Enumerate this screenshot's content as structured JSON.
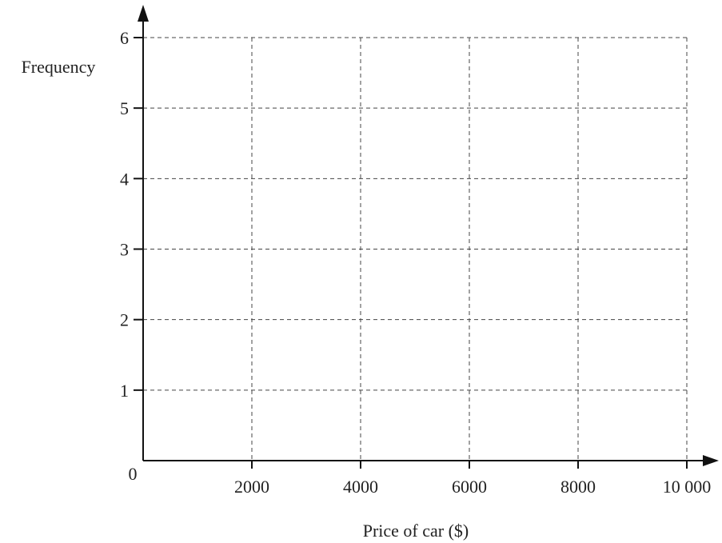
{
  "chart_data": {
    "type": "bar",
    "title": "",
    "xlabel": "Price of car ($)",
    "ylabel": "Frequency",
    "xlim": [
      0,
      10000
    ],
    "ylim": [
      0,
      6
    ],
    "x_ticks": [
      2000,
      4000,
      6000,
      8000,
      10000
    ],
    "x_tick_labels": [
      "2000",
      "4000",
      "6000",
      "8000",
      "10 000"
    ],
    "y_ticks": [
      1,
      2,
      3,
      4,
      5,
      6
    ],
    "y_tick_labels": [
      "1",
      "2",
      "3",
      "4",
      "5",
      "6"
    ],
    "origin_label": "0",
    "grid": true,
    "series": []
  }
}
